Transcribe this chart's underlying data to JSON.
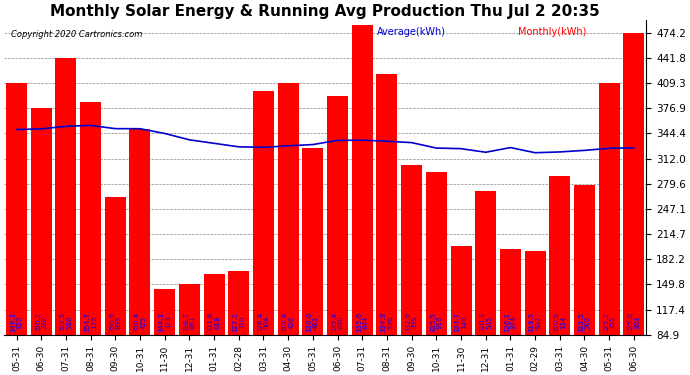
{
  "title": "Monthly Solar Energy & Running Avg Production Thu Jul 2 20:35",
  "copyright": "Copyright 2020 Cartronics.com",
  "legend_avg": "Average(kWh)",
  "legend_monthly": "Monthly(kWh)",
  "categories": [
    "05-31",
    "06-30",
    "07-31",
    "08-31",
    "09-30",
    "10-31",
    "11-30",
    "12-31",
    "01-31",
    "02-28",
    "03-31",
    "04-30",
    "05-31",
    "06-30",
    "07-31",
    "08-31",
    "09-30",
    "10-31",
    "11-30",
    "12-31",
    "01-31",
    "02-29",
    "03-31",
    "04-30",
    "05-31",
    "06-30"
  ],
  "monthly_values": [
    409.3,
    376.9,
    441.8,
    384.5,
    263.0,
    350.0,
    144.3,
    150.5,
    163.1,
    167.5,
    399.4,
    409.3,
    325.0,
    392.0,
    484.0,
    421.0,
    304.0,
    294.5,
    199.0,
    270.0,
    196.0,
    193.5,
    289.5,
    278.0,
    409.3,
    474.2
  ],
  "avg_values": [
    349.3,
    350.2,
    353.5,
    354.7,
    350.5,
    350.4,
    344.3,
    336.1,
    331.6,
    327.1,
    326.4,
    328.4,
    330.0,
    335.4,
    335.6,
    334.3,
    332.5,
    325.5,
    324.7,
    320.1,
    326.1,
    319.5,
    320.5,
    322.5,
    325.2,
    325.8
  ],
  "bar_label_top": [
    "349.3",
    "350.2",
    "353.5",
    "354.7",
    "350.5",
    "350.4",
    "344.3",
    "336.1",
    "331.6",
    "327.1",
    "326.4",
    "328.4",
    "330.0",
    "335.4",
    "335.6",
    "334.3",
    "332.5",
    "325.5",
    "324.7",
    "320.1",
    "326.1",
    "319.5",
    "320.5",
    "322.5",
    "325.2",
    "325.8"
  ],
  "bar_label_bot": [
    "320",
    "228",
    "530",
    "175",
    "895",
    "425",
    "323",
    "861",
    "618",
    "310",
    "904",
    "426",
    "461",
    "030",
    "644",
    "536",
    "395",
    "916",
    "149",
    "545",
    "374",
    "501",
    "154",
    "565",
    "355",
    "303"
  ],
  "bar_color": "#ff0000",
  "line_color": "#0000cc",
  "background_color": "#ffffff",
  "plot_bg_color": "#ffffff",
  "ylim": [
    84.9,
    490
  ],
  "yticks": [
    84.9,
    117.4,
    149.8,
    182.2,
    214.7,
    247.1,
    279.6,
    312.0,
    344.4,
    376.9,
    409.3,
    441.8,
    474.2
  ],
  "title_fontsize": 11,
  "bar_label_fontsize": 5.0,
  "grid_color": "#888888",
  "grid_style": "--"
}
